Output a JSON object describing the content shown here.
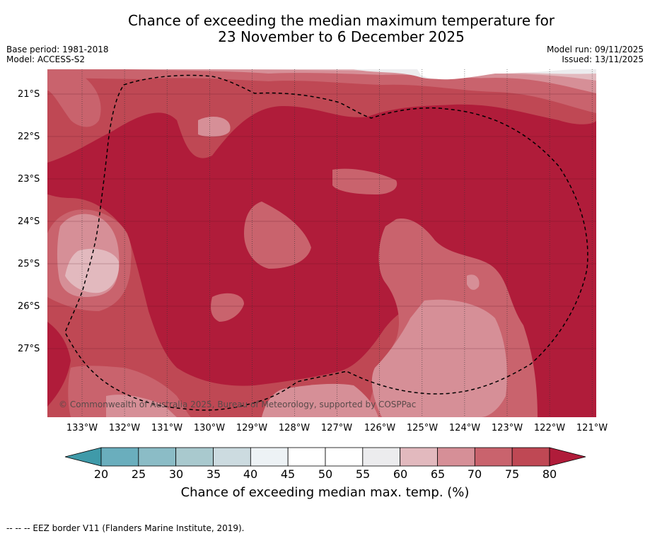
{
  "title": {
    "line1": "Chance of exceeding the median maximum temperature for",
    "line2": "23 November to 6 December 2025"
  },
  "meta": {
    "base_period": "Base period: 1981-2018",
    "model": "Model: ACCESS-S2",
    "model_run": "Model run: 09/11/2025",
    "issued": "Issued: 13/11/2025"
  },
  "map": {
    "lat_labels": [
      "21°S",
      "22°S",
      "23°S",
      "24°S",
      "25°S",
      "26°S",
      "27°S"
    ],
    "lon_labels": [
      "133°W",
      "132°W",
      "131°W",
      "130°W",
      "129°W",
      "128°W",
      "127°W",
      "126°W",
      "125°W",
      "124°W",
      "123°W",
      "122°W",
      "121°W"
    ],
    "copyright": "© Commonwealth of Australia 2025, Bureau of Meteorology, supported by COSPPac",
    "eez_outline": "dashed EEZ border"
  },
  "colorbar": {
    "ticks": [
      "20",
      "25",
      "30",
      "35",
      "40",
      "45",
      "50",
      "55",
      "60",
      "65",
      "70",
      "75",
      "80"
    ],
    "colors": [
      "#6aaebd",
      "#8bbcc6",
      "#a9c9ce",
      "#ccdbe0",
      "#edf2f5",
      "#ffffff",
      "#ffffff",
      "#ececee",
      "#e2b9be",
      "#d68f97",
      "#c9636d",
      "#bf4854"
    ],
    "low_color": "#3f9aa9",
    "high_color": "#b01c3a",
    "label": "Chance of exceeding median max. temp. (%)"
  },
  "footnote": "--  --  -- EEZ border V11 (Flanders Marine Institute, 2019)."
}
